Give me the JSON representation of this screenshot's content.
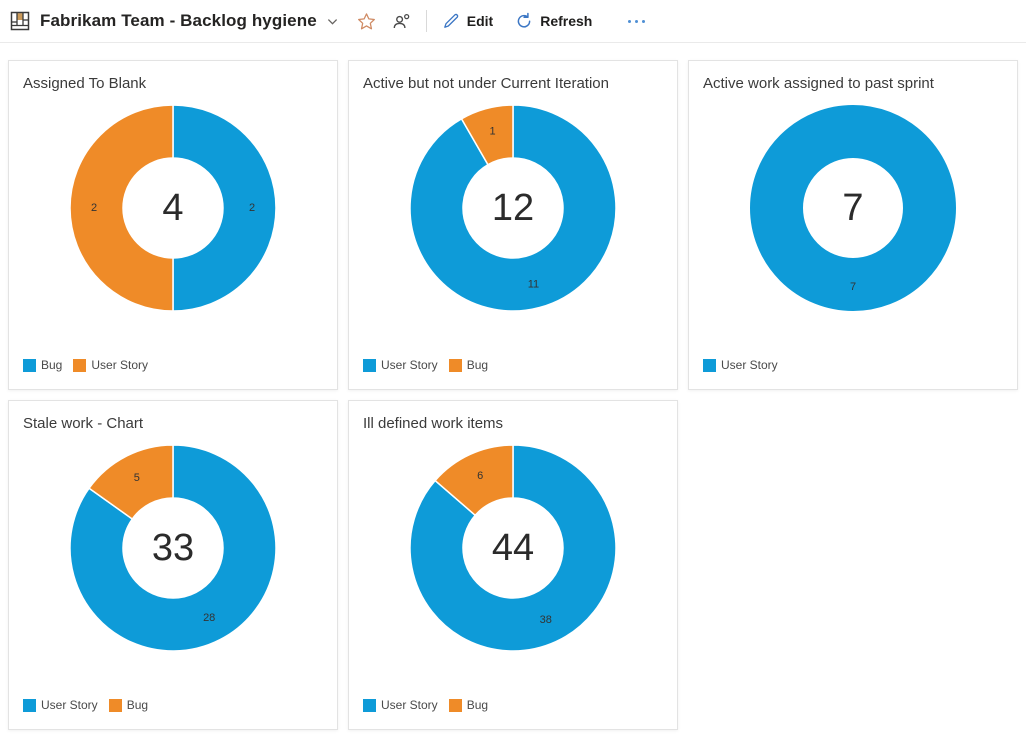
{
  "header": {
    "dashboard_title": "Fabrikam Team - Backlog hygiene",
    "commands": {
      "edit": "Edit",
      "refresh": "Refresh"
    }
  },
  "colors": {
    "series_blue": "#0e9bd8",
    "series_orange": "#ef8b28",
    "command_icon_blue": "#3b76c4",
    "favorite_star": "#cf8a63"
  },
  "chart_data": [
    {
      "type": "pie",
      "subtype": "donut",
      "title": "Assigned To Blank",
      "total": 4,
      "series": [
        {
          "name": "Bug",
          "value": 2,
          "color": "#0e9bd8"
        },
        {
          "name": "User Story",
          "value": 2,
          "color": "#ef8b28"
        }
      ],
      "legend_position": "bottom-left",
      "labels_shown": true
    },
    {
      "type": "pie",
      "subtype": "donut",
      "title": "Active but not under Current Iteration",
      "total": 12,
      "series": [
        {
          "name": "User Story",
          "value": 11,
          "color": "#0e9bd8"
        },
        {
          "name": "Bug",
          "value": 1,
          "color": "#ef8b28"
        }
      ],
      "legend_position": "bottom-left",
      "labels_shown": true
    },
    {
      "type": "pie",
      "subtype": "donut",
      "title": "Active work assigned to past sprint",
      "total": 7,
      "series": [
        {
          "name": "User Story",
          "value": 7,
          "color": "#0e9bd8"
        }
      ],
      "legend_position": "bottom-left",
      "labels_shown": true
    },
    {
      "type": "pie",
      "subtype": "donut",
      "title": "Stale work - Chart",
      "total": 33,
      "series": [
        {
          "name": "User Story",
          "value": 28,
          "color": "#0e9bd8"
        },
        {
          "name": "Bug",
          "value": 5,
          "color": "#ef8b28"
        }
      ],
      "legend_position": "bottom-left",
      "labels_shown": true
    },
    {
      "type": "pie",
      "subtype": "donut",
      "title": "Ill defined work items",
      "total": 44,
      "series": [
        {
          "name": "User Story",
          "value": 38,
          "color": "#0e9bd8"
        },
        {
          "name": "Bug",
          "value": 6,
          "color": "#ef8b28"
        }
      ],
      "legend_position": "bottom-left",
      "labels_shown": true
    }
  ]
}
